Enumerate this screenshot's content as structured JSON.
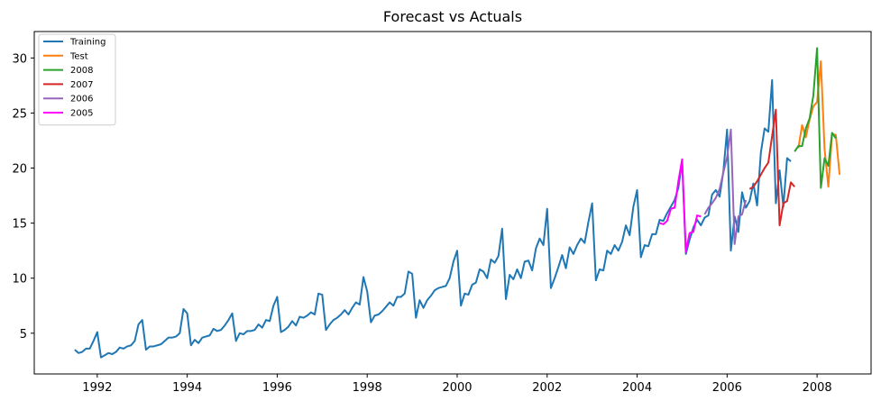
{
  "chart_data": {
    "type": "line",
    "title": "Forecast vs Actuals",
    "xlabel": "",
    "ylabel": "",
    "xlim": [
      1990.6,
      2009.2
    ],
    "ylim": [
      1.3,
      32.4
    ],
    "x_ticks": [
      1992,
      1994,
      1996,
      1998,
      2000,
      2002,
      2004,
      2006,
      2008
    ],
    "x_tick_labels": [
      "1992",
      "1994",
      "1996",
      "1998",
      "2000",
      "2002",
      "2004",
      "2006",
      "2008"
    ],
    "y_ticks": [
      5,
      10,
      15,
      20,
      25,
      30
    ],
    "y_tick_labels": [
      "5",
      "10",
      "15",
      "20",
      "25",
      "30"
    ],
    "grid": false,
    "legend_position": "top-left",
    "series": [
      {
        "name": "Training",
        "color": "#1f77b4",
        "x_start": 1991.5,
        "x_step": 0.0833333,
        "values": [
          3.5,
          3.2,
          3.3,
          3.6,
          3.6,
          4.3,
          5.1,
          2.8,
          3.0,
          3.2,
          3.1,
          3.3,
          3.7,
          3.6,
          3.8,
          3.9,
          4.3,
          5.8,
          6.2,
          3.5,
          3.8,
          3.8,
          3.9,
          4.0,
          4.3,
          4.6,
          4.6,
          4.7,
          5.0,
          7.2,
          6.8,
          3.9,
          4.4,
          4.1,
          4.6,
          4.7,
          4.8,
          5.4,
          5.2,
          5.3,
          5.7,
          6.2,
          6.8,
          4.3,
          5.0,
          4.9,
          5.2,
          5.2,
          5.3,
          5.8,
          5.5,
          6.2,
          6.1,
          7.5,
          8.3,
          5.1,
          5.3,
          5.6,
          6.1,
          5.7,
          6.5,
          6.4,
          6.6,
          6.9,
          6.7,
          8.6,
          8.5,
          5.3,
          5.8,
          6.2,
          6.4,
          6.7,
          7.1,
          6.7,
          7.3,
          7.8,
          7.6,
          10.1,
          8.8,
          6.0,
          6.6,
          6.7,
          7.0,
          7.4,
          7.8,
          7.5,
          8.3,
          8.3,
          8.6,
          10.6,
          10.4,
          6.4,
          8.0,
          7.3,
          8.0,
          8.4,
          8.9,
          9.1,
          9.2,
          9.3,
          10.0,
          11.5,
          12.5,
          7.5,
          8.6,
          8.5,
          9.4,
          9.6,
          10.8,
          10.6,
          10.0,
          11.7,
          11.4,
          12.0,
          14.5,
          8.1,
          10.3,
          9.9,
          10.8,
          10.0,
          11.5,
          11.6,
          10.7,
          12.7,
          13.6,
          13.0,
          16.3,
          9.1,
          10.0,
          11.0,
          12.1,
          10.9,
          12.8,
          12.2,
          13.0,
          13.6,
          13.2,
          15.1,
          16.8,
          9.8,
          10.8,
          10.7,
          12.5,
          12.2,
          13.0,
          12.5,
          13.3,
          14.8,
          13.9,
          16.5,
          18.0,
          11.9,
          13.0,
          12.9,
          14.0,
          14.0,
          15.3,
          15.2,
          15.9,
          16.5,
          17.1,
          18.2,
          20.6,
          12.2,
          13.5,
          14.6,
          15.3,
          14.8,
          15.5,
          15.7,
          17.6,
          18.0,
          17.4,
          19.7,
          23.5,
          12.5,
          15.6,
          14.2,
          17.8,
          16.4,
          17.0,
          18.6,
          16.6,
          21.4,
          23.6,
          23.3,
          28.0,
          16.8,
          19.8,
          16.5,
          20.9,
          20.6
        ]
      },
      {
        "name": "Test",
        "color": "#ff7f0e",
        "x_start": 2007.5833,
        "x_step": 0.0833333,
        "values": [
          21.8,
          23.9,
          22.8,
          24.4,
          25.6,
          26.0,
          29.7,
          21.7,
          18.3,
          23.1,
          23.0,
          19.4
        ]
      },
      {
        "name": "2008",
        "color": "#2ca02c",
        "x_start": 2007.5,
        "x_step": 0.0833333,
        "values": [
          21.5,
          22.0,
          22.0,
          23.6,
          24.5,
          26.6,
          30.9,
          18.2,
          20.9,
          20.2,
          23.2,
          22.7
        ]
      },
      {
        "name": "2007",
        "color": "#d62728",
        "x_start": 2006.5,
        "x_step": 0.0833333,
        "values": [
          18.1,
          18.3,
          18.8,
          19.4,
          20.0,
          20.5,
          22.9,
          25.3,
          14.8,
          16.8,
          17.0,
          18.7,
          18.3
        ]
      },
      {
        "name": "2006",
        "color": "#9467bd",
        "x_start": 2005.5,
        "x_step": 0.0833333,
        "values": [
          15.8,
          16.4,
          16.8,
          17.3,
          18.1,
          19.6,
          21.0,
          23.5,
          13.1,
          15.6,
          15.8,
          17.1
        ]
      },
      {
        "name": "2005",
        "color": "#ff00ff",
        "x_start": 2004.5,
        "x_step": 0.0833333,
        "values": [
          15.0,
          14.9,
          15.2,
          16.3,
          16.4,
          18.8,
          20.8,
          12.4,
          14.1,
          14.2,
          15.7,
          15.6
        ]
      }
    ]
  }
}
